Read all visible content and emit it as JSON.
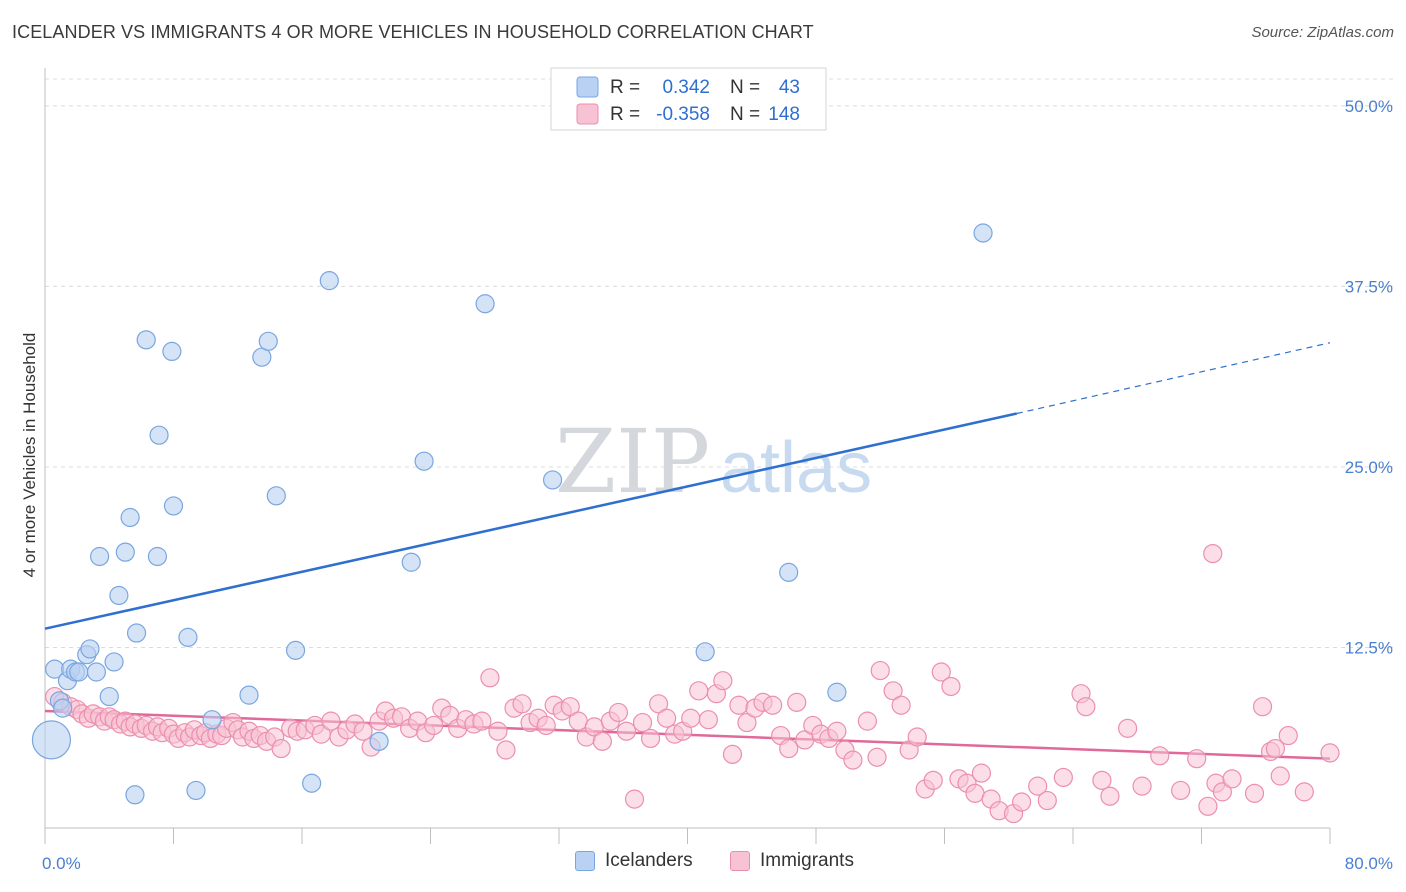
{
  "title": "ICELANDER VS IMMIGRANTS 4 OR MORE VEHICLES IN HOUSEHOLD CORRELATION CHART",
  "source": "Source: ZipAtlas.com",
  "watermark": {
    "zip": "ZIP",
    "atlas": "atlas"
  },
  "colors": {
    "blue_fill": "#b9d1f2",
    "blue_stroke": "#7aa6e0",
    "blue_line": "#2f6fcf",
    "pink_fill": "#f7c2d3",
    "pink_stroke": "#ec8fae",
    "pink_line": "#e0689a",
    "tick_text": "#4a7fd0",
    "grid": "#dcdcdc"
  },
  "legend": {
    "rows": [
      {
        "r_label": "R =",
        "r_value": "0.342",
        "n_label": "N =",
        "n_value": "43"
      },
      {
        "r_label": "R =",
        "r_value": "-0.358",
        "n_label": "N =",
        "n_value": "148"
      }
    ]
  },
  "bottom_legend": {
    "icelanders": "Icelanders",
    "immigrants": "Immigrants"
  },
  "chart_data": {
    "type": "scatter",
    "title": "ICELANDER VS IMMIGRANTS 4 OR MORE VEHICLES IN HOUSEHOLD CORRELATION CHART",
    "xlabel": "",
    "ylabel": "4 or more Vehicles in Household",
    "xlim": [
      0,
      80
    ],
    "ylim": [
      0,
      52
    ],
    "x_tick_labels": [
      "0.0%",
      "80.0%"
    ],
    "y_ticks": [
      12.5,
      25.0,
      37.5,
      50.0
    ],
    "y_tick_labels": [
      "12.5%",
      "25.0%",
      "37.5%",
      "50.0%"
    ],
    "grid": true,
    "series": [
      {
        "name": "Icelanders",
        "R": 0.342,
        "N": 43,
        "trend": {
          "x0": 0,
          "y0": 13.8,
          "x1": 60.5,
          "y1": 28.7,
          "dash_to_x": 80,
          "dash_to_y": 33.6
        },
        "points": [
          [
            0.4,
            6.1,
            "big"
          ],
          [
            0.6,
            11.0
          ],
          [
            0.9,
            8.8
          ],
          [
            1.1,
            8.3
          ],
          [
            1.4,
            10.2
          ],
          [
            1.6,
            11.0
          ],
          [
            1.9,
            10.8
          ],
          [
            2.1,
            10.8
          ],
          [
            2.6,
            12.0
          ],
          [
            2.8,
            12.4
          ],
          [
            3.2,
            10.8
          ],
          [
            3.4,
            18.8
          ],
          [
            4.0,
            9.1
          ],
          [
            4.3,
            11.5
          ],
          [
            4.6,
            16.1
          ],
          [
            5.0,
            19.1
          ],
          [
            5.3,
            21.5
          ],
          [
            5.6,
            2.3
          ],
          [
            5.7,
            13.5
          ],
          [
            6.3,
            33.8
          ],
          [
            7.0,
            18.8
          ],
          [
            7.1,
            27.2
          ],
          [
            7.9,
            33.0
          ],
          [
            8.0,
            22.3
          ],
          [
            8.9,
            13.2
          ],
          [
            9.4,
            2.6
          ],
          [
            10.4,
            7.5
          ],
          [
            12.7,
            9.2
          ],
          [
            13.5,
            32.6
          ],
          [
            13.9,
            33.7
          ],
          [
            14.4,
            23.0
          ],
          [
            15.6,
            12.3
          ],
          [
            16.6,
            3.1
          ],
          [
            17.7,
            37.9
          ],
          [
            20.8,
            6.0
          ],
          [
            22.8,
            18.4
          ],
          [
            23.6,
            25.4
          ],
          [
            27.4,
            36.3
          ],
          [
            31.6,
            24.1
          ],
          [
            41.1,
            12.2
          ],
          [
            46.3,
            17.7
          ],
          [
            49.3,
            9.4
          ],
          [
            58.4,
            41.2
          ]
        ]
      },
      {
        "name": "Immigrants",
        "R": -0.358,
        "N": 148,
        "trend": {
          "x0": 0,
          "y0": 8.1,
          "x1": 80,
          "y1": 4.8
        },
        "points": [
          [
            0.6,
            9.1
          ],
          [
            1.1,
            8.7
          ],
          [
            1.6,
            8.4
          ],
          [
            2.0,
            8.2
          ],
          [
            2.3,
            7.9
          ],
          [
            2.7,
            7.6
          ],
          [
            3.0,
            7.9
          ],
          [
            3.4,
            7.7
          ],
          [
            3.7,
            7.4
          ],
          [
            4.0,
            7.7
          ],
          [
            4.3,
            7.5
          ],
          [
            4.7,
            7.2
          ],
          [
            5.0,
            7.4
          ],
          [
            5.3,
            7.0
          ],
          [
            5.6,
            7.2
          ],
          [
            6.0,
            6.9
          ],
          [
            6.3,
            7.1
          ],
          [
            6.7,
            6.7
          ],
          [
            7.0,
            7.0
          ],
          [
            7.3,
            6.6
          ],
          [
            7.7,
            6.9
          ],
          [
            8.0,
            6.5
          ],
          [
            8.3,
            6.2
          ],
          [
            8.7,
            6.6
          ],
          [
            9.0,
            6.3
          ],
          [
            9.3,
            6.8
          ],
          [
            9.7,
            6.4
          ],
          [
            10.0,
            6.6
          ],
          [
            10.3,
            6.2
          ],
          [
            10.7,
            6.5
          ],
          [
            11.0,
            6.4
          ],
          [
            11.3,
            6.9
          ],
          [
            11.7,
            7.3
          ],
          [
            12.0,
            6.8
          ],
          [
            12.3,
            6.3
          ],
          [
            12.7,
            6.7
          ],
          [
            13.0,
            6.2
          ],
          [
            13.4,
            6.4
          ],
          [
            13.8,
            6.0
          ],
          [
            14.3,
            6.3
          ],
          [
            14.7,
            5.5
          ],
          [
            15.3,
            6.9
          ],
          [
            15.7,
            6.7
          ],
          [
            16.2,
            6.8
          ],
          [
            16.8,
            7.1
          ],
          [
            17.2,
            6.5
          ],
          [
            17.8,
            7.4
          ],
          [
            18.3,
            6.3
          ],
          [
            18.8,
            6.8
          ],
          [
            19.3,
            7.2
          ],
          [
            19.8,
            6.7
          ],
          [
            20.3,
            5.6
          ],
          [
            20.8,
            7.4
          ],
          [
            21.2,
            8.1
          ],
          [
            21.7,
            7.6
          ],
          [
            22.2,
            7.7
          ],
          [
            22.7,
            6.9
          ],
          [
            23.2,
            7.4
          ],
          [
            23.7,
            6.6
          ],
          [
            24.2,
            7.1
          ],
          [
            24.7,
            8.3
          ],
          [
            25.2,
            7.8
          ],
          [
            25.7,
            6.9
          ],
          [
            26.2,
            7.5
          ],
          [
            26.7,
            7.2
          ],
          [
            27.2,
            7.4
          ],
          [
            27.7,
            10.4
          ],
          [
            28.2,
            6.7
          ],
          [
            28.7,
            5.4
          ],
          [
            29.2,
            8.3
          ],
          [
            29.7,
            8.6
          ],
          [
            30.2,
            7.3
          ],
          [
            30.7,
            7.6
          ],
          [
            31.2,
            7.1
          ],
          [
            31.7,
            8.5
          ],
          [
            32.2,
            8.1
          ],
          [
            32.7,
            8.4
          ],
          [
            33.2,
            7.4
          ],
          [
            33.7,
            6.3
          ],
          [
            34.2,
            7.0
          ],
          [
            34.7,
            6.0
          ],
          [
            35.2,
            7.4
          ],
          [
            35.7,
            8.0
          ],
          [
            36.2,
            6.7
          ],
          [
            36.7,
            2.0
          ],
          [
            37.2,
            7.3
          ],
          [
            37.7,
            6.2
          ],
          [
            38.2,
            8.6
          ],
          [
            38.7,
            7.6
          ],
          [
            39.2,
            6.5
          ],
          [
            39.7,
            6.7
          ],
          [
            40.2,
            7.6
          ],
          [
            40.7,
            9.5
          ],
          [
            41.3,
            7.5
          ],
          [
            41.8,
            9.3
          ],
          [
            42.2,
            10.2
          ],
          [
            42.8,
            5.1
          ],
          [
            43.2,
            8.5
          ],
          [
            43.7,
            7.3
          ],
          [
            44.2,
            8.3
          ],
          [
            44.7,
            8.7
          ],
          [
            45.3,
            8.5
          ],
          [
            45.8,
            6.4
          ],
          [
            46.3,
            5.5
          ],
          [
            46.8,
            8.7
          ],
          [
            47.3,
            6.1
          ],
          [
            47.8,
            7.1
          ],
          [
            48.3,
            6.5
          ],
          [
            48.8,
            6.2
          ],
          [
            49.3,
            6.7
          ],
          [
            49.8,
            5.4
          ],
          [
            50.3,
            4.7
          ],
          [
            51.2,
            7.4
          ],
          [
            51.8,
            4.9
          ],
          [
            52.0,
            10.9
          ],
          [
            52.8,
            9.5
          ],
          [
            53.3,
            8.5
          ],
          [
            53.8,
            5.4
          ],
          [
            54.3,
            6.3
          ],
          [
            54.8,
            2.7
          ],
          [
            55.3,
            3.3
          ],
          [
            55.8,
            10.8
          ],
          [
            56.4,
            9.8
          ],
          [
            56.9,
            3.4
          ],
          [
            57.4,
            3.1
          ],
          [
            57.9,
            2.4
          ],
          [
            58.3,
            3.8
          ],
          [
            58.9,
            2.0
          ],
          [
            59.4,
            1.2
          ],
          [
            60.3,
            1.0
          ],
          [
            60.8,
            1.8
          ],
          [
            61.8,
            2.9
          ],
          [
            62.4,
            1.9
          ],
          [
            63.4,
            3.5
          ],
          [
            64.5,
            9.3
          ],
          [
            64.8,
            8.4
          ],
          [
            65.8,
            3.3
          ],
          [
            66.3,
            2.2
          ],
          [
            67.4,
            6.9
          ],
          [
            68.3,
            2.9
          ],
          [
            69.4,
            5.0
          ],
          [
            70.7,
            2.6
          ],
          [
            71.7,
            4.8
          ],
          [
            72.4,
            1.5
          ],
          [
            72.9,
            3.1
          ],
          [
            73.3,
            2.5
          ],
          [
            73.9,
            3.4
          ],
          [
            75.3,
            2.4
          ],
          [
            75.8,
            8.4
          ],
          [
            76.3,
            5.3
          ],
          [
            76.9,
            3.6
          ],
          [
            77.4,
            6.4
          ],
          [
            78.4,
            2.5
          ],
          [
            80.0,
            5.2
          ],
          [
            72.7,
            19.0
          ],
          [
            76.6,
            5.5
          ]
        ]
      }
    ]
  }
}
